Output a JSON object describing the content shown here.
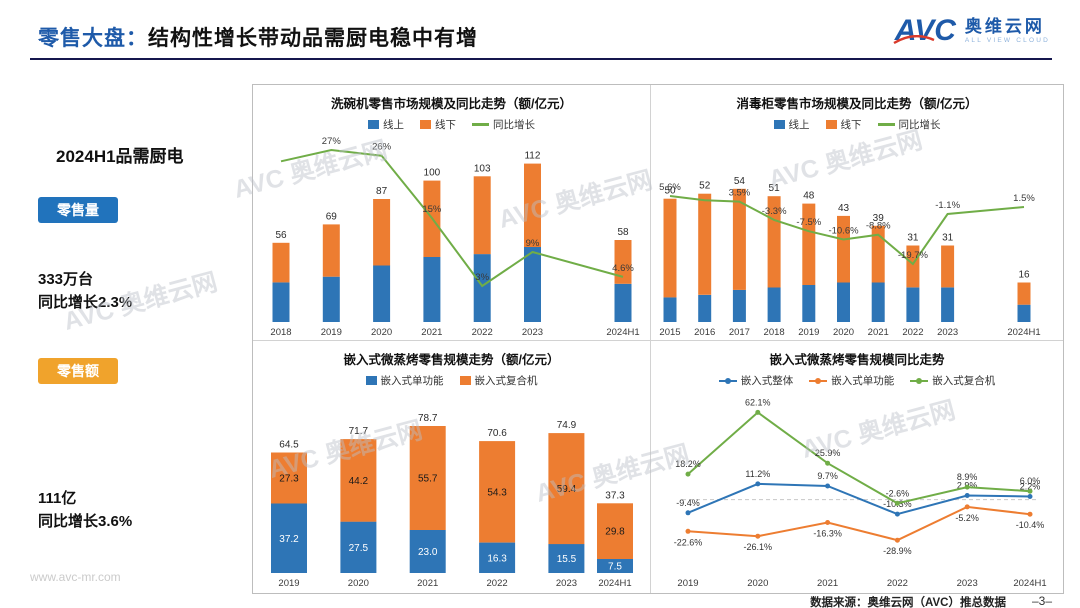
{
  "page": {
    "title_prefix": "零售大盘：",
    "title_main": "结构性增长带动品需厨电稳中有增",
    "footer_source": "数据来源：奥维云网（AVC）推总数据",
    "page_number": "–3–",
    "site_url": "www.avc-mr.com",
    "watermark_text": "AVC 奥维云网"
  },
  "logo": {
    "mark": "AVC",
    "name_cn": "奥维云网",
    "name_en": "ALL VIEW CLOUD"
  },
  "sidebar": {
    "heading": "2024H1品需厨电",
    "volume_badge": "零售量",
    "volume_value": "333万台",
    "volume_growth": "同比增长2.3%",
    "amount_badge": "零售额",
    "amount_value": "111亿",
    "amount_growth": "同比增长3.6%"
  },
  "colors": {
    "bar_blue": "#2E75B6",
    "bar_orange": "#ED7D31",
    "line_green": "#70AD47",
    "title_blue": "#1E5AA9",
    "rule_navy": "#15174E",
    "badge_blue": "#2173BC",
    "badge_orange": "#F0A32C",
    "logo_blue": "#1E5AA9",
    "logo_red": "#D93A2B",
    "logo_light": "#8FB3DC",
    "watermark_gray": "#BCC1C9"
  },
  "chart_data": [
    {
      "type": "stacked-bar-line",
      "title": "洗碗机零售市场规模及同比走势（额/亿元）",
      "categories": [
        "2018",
        "2019",
        "2020",
        "2021",
        "2022",
        "2023",
        "2024H1"
      ],
      "bar_series": [
        {
          "name": "线上",
          "color": "bar_blue",
          "values": [
            28,
            32,
            40,
            46,
            48,
            53,
            27
          ]
        },
        {
          "name": "线下",
          "color": "bar_orange",
          "values": [
            28,
            37,
            47,
            54,
            55,
            59,
            31
          ]
        }
      ],
      "total_labels": [
        "56",
        "69",
        "87",
        "100",
        "103",
        "112",
        "58"
      ],
      "line_series": {
        "name": "同比增长",
        "color": "line_green",
        "values": [
          25,
          27,
          26,
          15,
          3,
          9,
          4.6
        ],
        "labels": [
          "",
          "27%",
          "26%",
          "15%",
          "3%",
          "9%",
          "4.6%"
        ]
      }
    },
    {
      "type": "stacked-bar-line",
      "title": "消毒柜零售市场规模及同比走势（额/亿元）",
      "categories": [
        "2015",
        "2016",
        "2017",
        "2018",
        "2019",
        "2020",
        "2021",
        "2022",
        "2023",
        "2024H1"
      ],
      "bar_series": [
        {
          "name": "线上",
          "color": "bar_blue",
          "values": [
            10,
            11,
            13,
            14,
            15,
            16,
            16,
            14,
            14,
            7
          ]
        },
        {
          "name": "线下",
          "color": "bar_orange",
          "values": [
            40,
            41,
            41,
            37,
            33,
            27,
            23,
            17,
            17,
            9
          ]
        }
      ],
      "total_labels": [
        "50",
        "52",
        "54",
        "51",
        "48",
        "43",
        "39",
        "31",
        "31",
        "16"
      ],
      "line_series": {
        "name": "同比增长",
        "color": "line_green",
        "values": [
          5.6,
          4.0,
          3.5,
          -3.3,
          -7.5,
          -10.6,
          -8.8,
          -19.7,
          -1.1,
          1.5
        ],
        "labels": [
          "5.6%",
          "",
          "3.5%",
          "-3.3%",
          "-7.5%",
          "-10.6%",
          "-8.8%",
          "-19.7%",
          "-1.1%",
          "1.5%"
        ]
      }
    },
    {
      "type": "stacked-bar",
      "title": "嵌入式微蒸烤零售规模走势（额/亿元）",
      "categories": [
        "2019",
        "2020",
        "2021",
        "2022",
        "2023",
        "2024H1"
      ],
      "bar_series": [
        {
          "name": "嵌入式单功能",
          "color": "bar_blue",
          "values": [
            37.2,
            27.5,
            23.0,
            16.3,
            15.5,
            7.5
          ],
          "segment_labels": true,
          "label_color": "white"
        },
        {
          "name": "嵌入式复合机",
          "color": "bar_orange",
          "values": [
            27.3,
            44.2,
            55.7,
            54.3,
            59.4,
            29.8
          ],
          "segment_labels": true,
          "label_color": "black"
        }
      ],
      "total_labels": [
        "64.5",
        "71.7",
        "78.7",
        "70.6",
        "74.9",
        "37.3"
      ]
    },
    {
      "type": "multi-line",
      "title": "嵌入式微蒸烤零售规模同比走势",
      "categories": [
        "2019",
        "2020",
        "2021",
        "2022",
        "2023",
        "2024H1"
      ],
      "line_series": [
        {
          "name": "嵌入式整体",
          "color": "bar_blue",
          "values": [
            -9.4,
            11.2,
            9.7,
            -10.3,
            2.9,
            2.2
          ],
          "labels": [
            "-9.4%",
            "11.2%",
            "9.7%",
            "-10.3%",
            "2.9%",
            "2.2%"
          ]
        },
        {
          "name": "嵌入式单功能",
          "color": "bar_orange",
          "values": [
            -22.6,
            -26.1,
            -16.3,
            -28.9,
            -5.2,
            -10.4
          ],
          "labels": [
            "-22.6%",
            "-26.1%",
            "-16.3%",
            "-28.9%",
            "-5.2%",
            "-10.4%"
          ]
        },
        {
          "name": "嵌入式复合机",
          "color": "line_green",
          "values": [
            18.2,
            62.1,
            25.9,
            -2.6,
            8.9,
            6.0
          ],
          "labels": [
            "18.2%",
            "62.1%",
            "25.9%",
            "-2.6%",
            "8.9%",
            "6.0%"
          ]
        }
      ]
    }
  ]
}
